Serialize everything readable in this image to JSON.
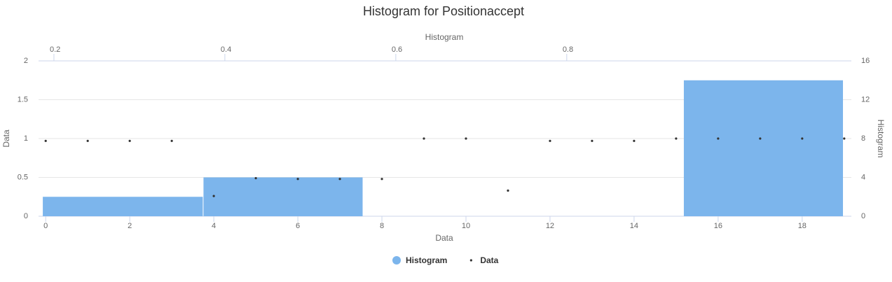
{
  "chart_data": {
    "type": "histogram",
    "title": "Histogram for Positionaccept",
    "x_label": "Data",
    "x2_label": "Histogram",
    "y_label": "Data",
    "y2_label": "Histogram",
    "xlim": [
      -0.17,
      19.17
    ],
    "xticks": [
      0,
      2,
      4,
      6,
      8,
      10,
      12,
      14,
      16,
      18
    ],
    "x2lim": [
      0.182,
      1.133
    ],
    "x2ticks": [
      0.2,
      0.4,
      0.6,
      0.8
    ],
    "ylim": [
      0,
      2
    ],
    "yticks": [
      0,
      0.5,
      1,
      1.5,
      2
    ],
    "y2lim": [
      0,
      16
    ],
    "y2ticks": [
      0,
      4,
      8,
      12,
      16
    ],
    "grid": true,
    "legend": "bottom",
    "series": [
      {
        "name": "Histogram",
        "type": "histogram",
        "color": "#7cb5ec",
        "axis": "y2",
        "bins": [
          0.187,
          0.375,
          0.562,
          0.749,
          0.937,
          1.124
        ],
        "values": [
          2,
          4,
          0,
          0,
          14
        ]
      },
      {
        "name": "Data",
        "type": "scatter",
        "color": "#333333",
        "x": [
          0,
          1,
          2,
          3,
          4,
          5,
          6,
          7,
          8,
          9,
          10,
          11,
          12,
          13,
          14,
          15,
          16,
          17,
          18,
          19
        ],
        "values": [
          0.97,
          0.97,
          0.97,
          0.97,
          0.26,
          0.49,
          0.48,
          0.48,
          0.48,
          1.0,
          1.0,
          0.33,
          0.97,
          0.97,
          0.97,
          1.0,
          1.0,
          1.0,
          1.0,
          1.0
        ]
      }
    ]
  }
}
